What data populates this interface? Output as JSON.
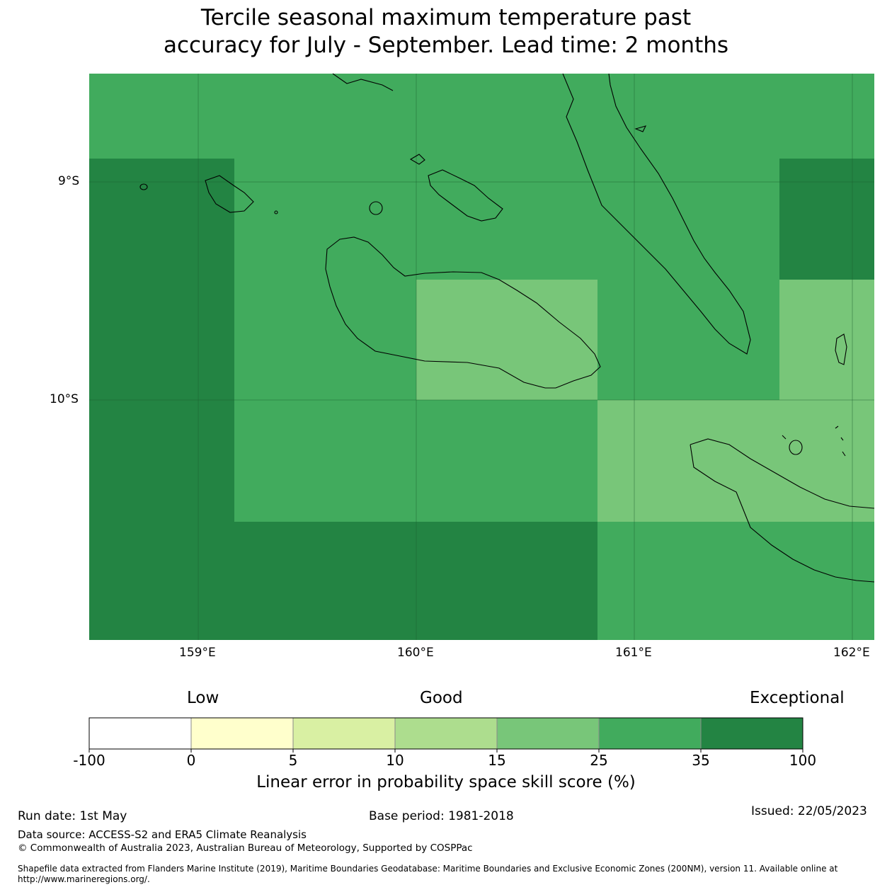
{
  "title": {
    "line1": "Tercile seasonal maximum temperature past",
    "line2": "accuracy for July - September. Lead time: 2 months"
  },
  "map": {
    "lat_labels": [
      "9°S",
      "10°S"
    ],
    "lon_labels": [
      "159°E",
      "160°E",
      "161°E",
      "162°E"
    ],
    "colors": {
      "band_15_25": "#78c679",
      "band_25_35": "#41ab5d",
      "band_35_100": "#238443"
    }
  },
  "colorbar": {
    "words": [
      "Low",
      "Good",
      "Exceptional"
    ],
    "ticks": [
      "-100",
      "0",
      "5",
      "10",
      "15",
      "25",
      "35",
      "100"
    ],
    "colors": [
      "#ffffff",
      "#ffffcc",
      "#d9f0a3",
      "#addd8e",
      "#78c679",
      "#41ab5d",
      "#238443"
    ],
    "label": "Linear error in probability space skill score (%)"
  },
  "footer": {
    "run_date": "Run date: 1st May",
    "base_period": "Base period: 1981-2018",
    "issued": "Issued: 22/05/2023",
    "data_source": "Data source: ACCESS-S2 and ERA5 Climate Reanalysis",
    "copyright": "© Commonwealth of Australia 2023, Australian Bureau of Meteorology, Supported by COSPPac",
    "shapefile": "Shapefile data extracted from Flanders Marine Institute (2019), Maritime Boundaries Geodatabase: Maritime Boundaries and Exclusive Economic Zones (200NM), version 11. Available online at http://www.marineregions.org/."
  }
}
